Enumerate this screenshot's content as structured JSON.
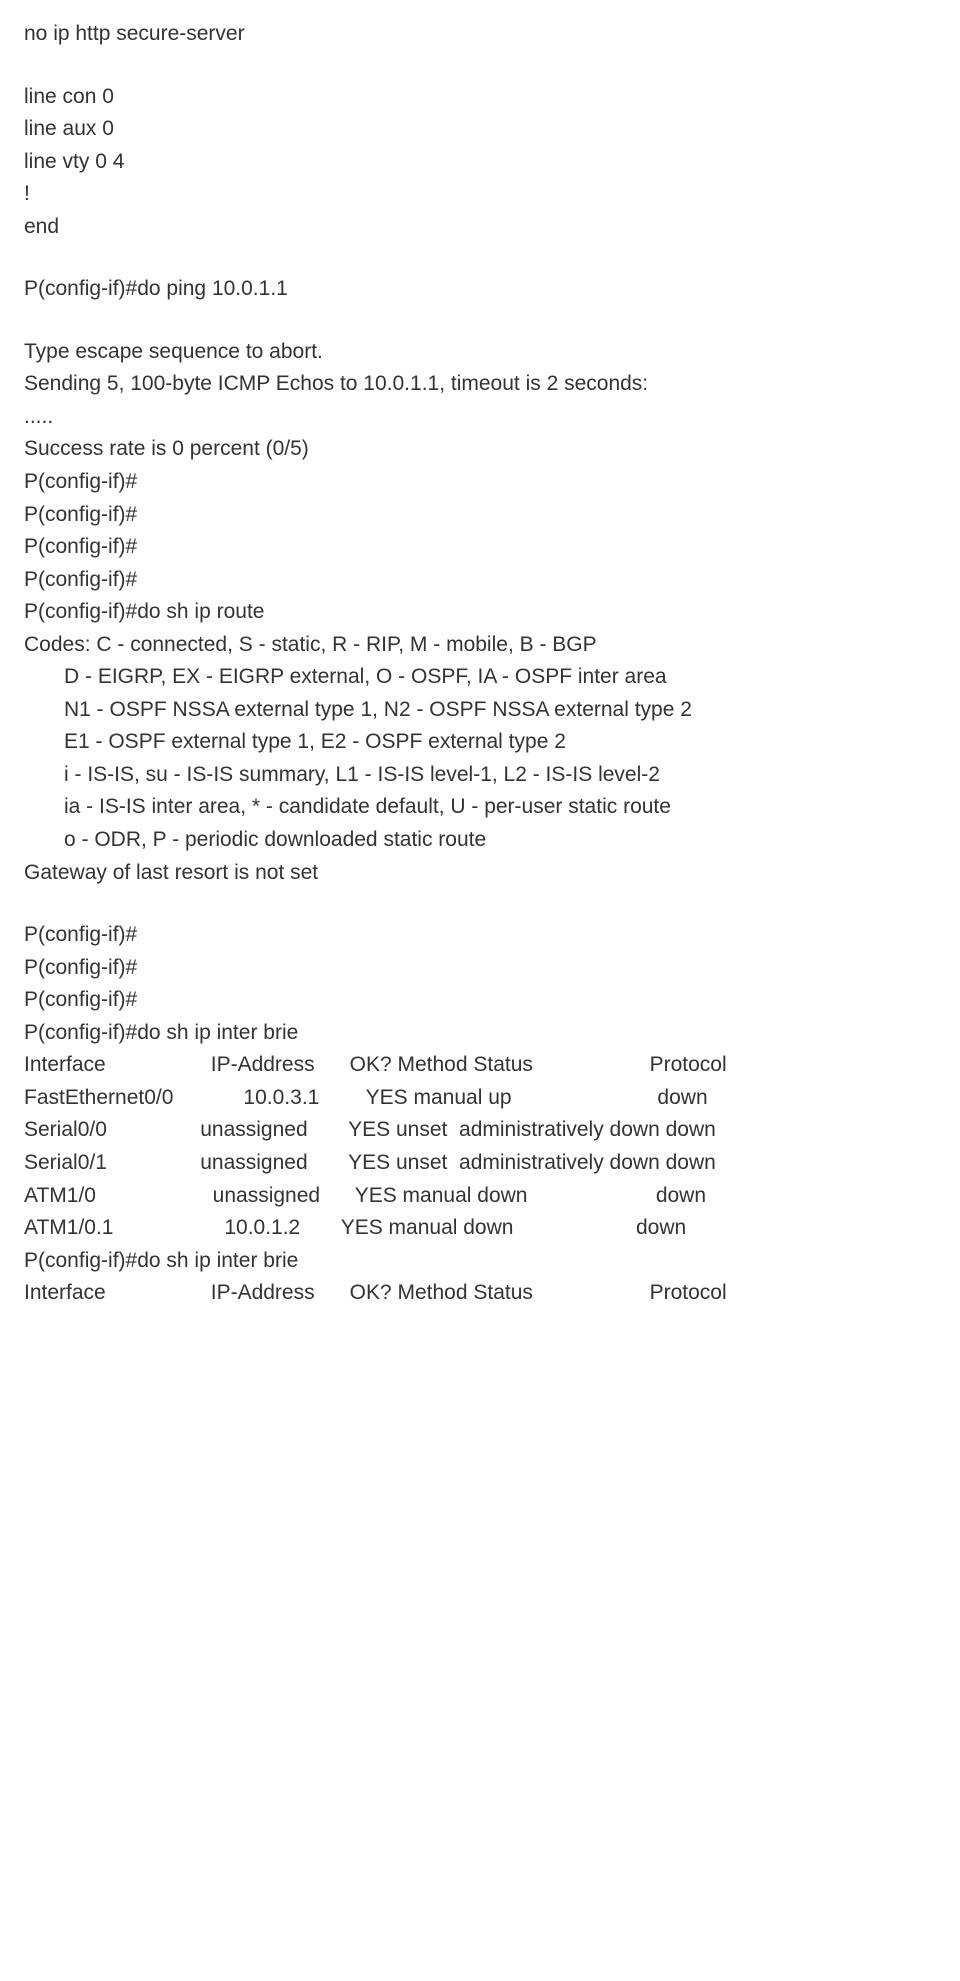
{
  "cfg": {
    "l01": "no ip http secure-server",
    "l02": "line con 0",
    "l03": "line aux 0",
    "l04": "line vty 0 4",
    "l05": "!",
    "l06": "end"
  },
  "ping": {
    "cmd": "P(config-if)#do ping 10.0.1.1",
    "esc": "Type escape sequence to abort.",
    "send": "Sending 5, 100-byte ICMP Echos to 10.0.1.1, timeout is 2 seconds:",
    "dots": ".....",
    "result": "Success rate is 0 percent (0/5)"
  },
  "prompt": "P(config-if)#",
  "route": {
    "cmd": "P(config-if)#do sh ip route",
    "codes0": "Codes: C - connected, S - static, R - RIP, M - mobile, B - BGP",
    "codes1": "D - EIGRP, EX - EIGRP external, O - OSPF, IA - OSPF inter area",
    "codes2": "N1 - OSPF NSSA external type 1, N2 - OSPF NSSA external type 2",
    "codes3": "E1 - OSPF external type 1, E2 - OSPF external type 2",
    "codes4": "i - IS-IS, su - IS-IS summary, L1 - IS-IS level-1, L2 - IS-IS level-2",
    "codes5": "ia - IS-IS inter area, * - candidate default, U - per-user static route",
    "codes6": "o - ODR, P - periodic downloaded static route",
    "gw": "Gateway of last resort is not set"
  },
  "brief": {
    "cmd": "P(config-if)#do sh ip inter brie",
    "hdr": "Interface                  IP-Address      OK? Method Status                    Protocol",
    "r1": "FastEthernet0/0            10.0.3.1        YES manual up                         down",
    "r2": "Serial0/0                unassigned       YES unset  administratively down down",
    "r3": "Serial0/1                unassigned       YES unset  administratively down down",
    "r4": "ATM1/0                    unassigned      YES manual down                      down",
    "r5": "ATM1/0.1                   10.0.1.2       YES manual down                     down"
  }
}
